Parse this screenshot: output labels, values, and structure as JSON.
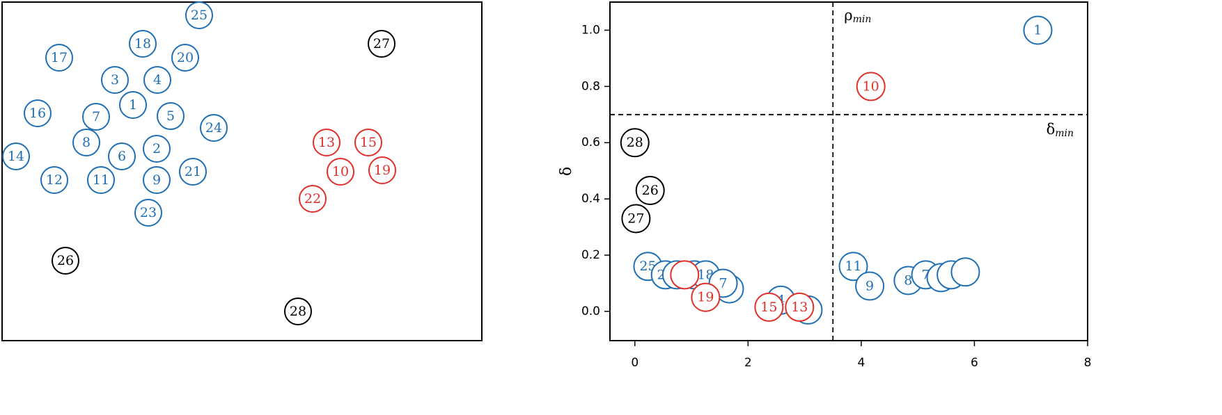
{
  "chart_data": [
    {
      "type": "scatter",
      "xlim": [
        0,
        689
      ],
      "ylim": [
        0,
        487
      ],
      "series": [
        {
          "color": "#1f6fb5",
          "x": [
            283,
            202,
            82,
            263,
            162,
            223,
            188,
            51,
            135,
            242,
            304,
            121,
            172,
            222,
            20,
            274,
            75,
            142,
            222,
            210
          ],
          "y": [
            468,
            427,
            407,
            407,
            375,
            375,
            339,
            327,
            322,
            323,
            306,
            285,
            265,
            276,
            265,
            243,
            231,
            231,
            231,
            184
          ],
          "labels": [
            "25",
            "18",
            "17",
            "20",
            "3",
            "4",
            "1",
            "16",
            "7",
            "5",
            "24",
            "8",
            "6",
            "2",
            "14",
            "21",
            "12",
            "11",
            "9",
            "23"
          ]
        },
        {
          "color": "#e0302a",
          "x": [
            466,
            526,
            486,
            546,
            446
          ],
          "y": [
            285,
            285,
            243,
            245,
            204
          ],
          "labels": [
            "13",
            "15",
            "10",
            "19",
            "22"
          ]
        },
        {
          "color": "#000000",
          "x": [
            545,
            91,
            425
          ],
          "y": [
            427,
            115,
            42
          ],
          "labels": [
            "27",
            "26",
            "28"
          ]
        }
      ]
    },
    {
      "type": "scatter",
      "ylabel": "δ",
      "xlim": [
        -0.44,
        8
      ],
      "ylim": [
        -0.104,
        1.1
      ],
      "xticks": [
        0,
        2,
        4,
        6,
        8
      ],
      "yticks": [
        {
          "value": 0,
          "label": "0.0"
        },
        {
          "value": 0.2,
          "label": "0.2"
        },
        {
          "value": 0.4,
          "label": "0.4"
        },
        {
          "value": 0.6,
          "label": "0.6"
        },
        {
          "value": 0.8,
          "label": "0.8"
        },
        {
          "value": 1.0,
          "label": "1.0"
        }
      ],
      "thresholds": [
        {
          "orientation": "vertical",
          "value": 3.5,
          "label": "ρ",
          "sub": "min"
        },
        {
          "orientation": "horizontal",
          "value": 0.7,
          "label": "δ",
          "sub": "min"
        }
      ],
      "series": [
        {
          "color": "#1f6fb5",
          "x": [
            0.23,
            0.54,
            0.74,
            1.05,
            1.25,
            1.67,
            1.56,
            2.58,
            3.06,
            3.86,
            4.15,
            4.83,
            5.14,
            5.41,
            5.59,
            5.84,
            7.12
          ],
          "y": [
            0.16,
            0.13,
            0.13,
            0.13,
            0.13,
            0.08,
            0.1,
            0.04,
            0.005,
            0.16,
            0.09,
            0.11,
            0.13,
            0.12,
            0.13,
            0.14,
            1.0
          ],
          "labels": [
            "25",
            "24",
            null,
            null,
            "18",
            null,
            "7",
            "4",
            "2",
            "11",
            "9",
            "8",
            "7",
            "5",
            null,
            null,
            "1"
          ]
        },
        {
          "color": "#e0302a",
          "x": [
            0.88,
            1.25,
            2.37,
            2.91,
            4.17
          ],
          "y": [
            0.13,
            0.05,
            0.015,
            0.015,
            0.8
          ],
          "labels": [
            null,
            "19",
            "15",
            "13",
            "10"
          ]
        },
        {
          "color": "#000000",
          "x": [
            0,
            0.27,
            0.02
          ],
          "y": [
            0.6,
            0.43,
            0.33
          ],
          "labels": [
            "28",
            "26",
            "27"
          ]
        }
      ]
    }
  ]
}
